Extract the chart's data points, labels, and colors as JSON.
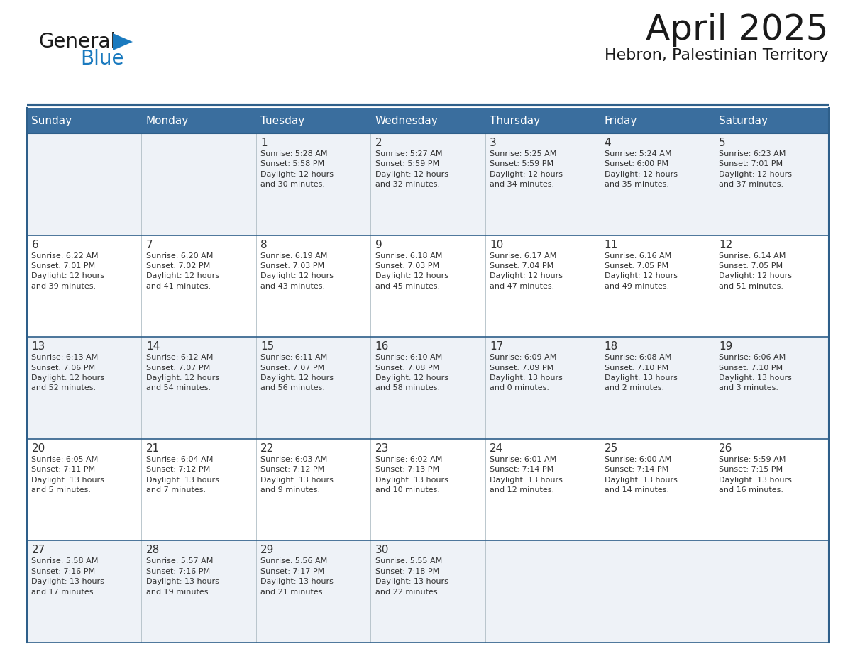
{
  "title": "April 2025",
  "subtitle": "Hebron, Palestinian Territory",
  "header_bg_color": "#3a6e9e",
  "header_text_color": "#ffffff",
  "cell_bg_color_odd": "#eef2f7",
  "cell_bg_color_even": "#ffffff",
  "grid_line_color": "#2e5f8a",
  "day_number_color": "#333333",
  "cell_text_color": "#333333",
  "days_of_week": [
    "Sunday",
    "Monday",
    "Tuesday",
    "Wednesday",
    "Thursday",
    "Friday",
    "Saturday"
  ],
  "weeks": [
    [
      {
        "day": "",
        "info": ""
      },
      {
        "day": "",
        "info": ""
      },
      {
        "day": "1",
        "info": "Sunrise: 5:28 AM\nSunset: 5:58 PM\nDaylight: 12 hours\nand 30 minutes."
      },
      {
        "day": "2",
        "info": "Sunrise: 5:27 AM\nSunset: 5:59 PM\nDaylight: 12 hours\nand 32 minutes."
      },
      {
        "day": "3",
        "info": "Sunrise: 5:25 AM\nSunset: 5:59 PM\nDaylight: 12 hours\nand 34 minutes."
      },
      {
        "day": "4",
        "info": "Sunrise: 5:24 AM\nSunset: 6:00 PM\nDaylight: 12 hours\nand 35 minutes."
      },
      {
        "day": "5",
        "info": "Sunrise: 6:23 AM\nSunset: 7:01 PM\nDaylight: 12 hours\nand 37 minutes."
      }
    ],
    [
      {
        "day": "6",
        "info": "Sunrise: 6:22 AM\nSunset: 7:01 PM\nDaylight: 12 hours\nand 39 minutes."
      },
      {
        "day": "7",
        "info": "Sunrise: 6:20 AM\nSunset: 7:02 PM\nDaylight: 12 hours\nand 41 minutes."
      },
      {
        "day": "8",
        "info": "Sunrise: 6:19 AM\nSunset: 7:03 PM\nDaylight: 12 hours\nand 43 minutes."
      },
      {
        "day": "9",
        "info": "Sunrise: 6:18 AM\nSunset: 7:03 PM\nDaylight: 12 hours\nand 45 minutes."
      },
      {
        "day": "10",
        "info": "Sunrise: 6:17 AM\nSunset: 7:04 PM\nDaylight: 12 hours\nand 47 minutes."
      },
      {
        "day": "11",
        "info": "Sunrise: 6:16 AM\nSunset: 7:05 PM\nDaylight: 12 hours\nand 49 minutes."
      },
      {
        "day": "12",
        "info": "Sunrise: 6:14 AM\nSunset: 7:05 PM\nDaylight: 12 hours\nand 51 minutes."
      }
    ],
    [
      {
        "day": "13",
        "info": "Sunrise: 6:13 AM\nSunset: 7:06 PM\nDaylight: 12 hours\nand 52 minutes."
      },
      {
        "day": "14",
        "info": "Sunrise: 6:12 AM\nSunset: 7:07 PM\nDaylight: 12 hours\nand 54 minutes."
      },
      {
        "day": "15",
        "info": "Sunrise: 6:11 AM\nSunset: 7:07 PM\nDaylight: 12 hours\nand 56 minutes."
      },
      {
        "day": "16",
        "info": "Sunrise: 6:10 AM\nSunset: 7:08 PM\nDaylight: 12 hours\nand 58 minutes."
      },
      {
        "day": "17",
        "info": "Sunrise: 6:09 AM\nSunset: 7:09 PM\nDaylight: 13 hours\nand 0 minutes."
      },
      {
        "day": "18",
        "info": "Sunrise: 6:08 AM\nSunset: 7:10 PM\nDaylight: 13 hours\nand 2 minutes."
      },
      {
        "day": "19",
        "info": "Sunrise: 6:06 AM\nSunset: 7:10 PM\nDaylight: 13 hours\nand 3 minutes."
      }
    ],
    [
      {
        "day": "20",
        "info": "Sunrise: 6:05 AM\nSunset: 7:11 PM\nDaylight: 13 hours\nand 5 minutes."
      },
      {
        "day": "21",
        "info": "Sunrise: 6:04 AM\nSunset: 7:12 PM\nDaylight: 13 hours\nand 7 minutes."
      },
      {
        "day": "22",
        "info": "Sunrise: 6:03 AM\nSunset: 7:12 PM\nDaylight: 13 hours\nand 9 minutes."
      },
      {
        "day": "23",
        "info": "Sunrise: 6:02 AM\nSunset: 7:13 PM\nDaylight: 13 hours\nand 10 minutes."
      },
      {
        "day": "24",
        "info": "Sunrise: 6:01 AM\nSunset: 7:14 PM\nDaylight: 13 hours\nand 12 minutes."
      },
      {
        "day": "25",
        "info": "Sunrise: 6:00 AM\nSunset: 7:14 PM\nDaylight: 13 hours\nand 14 minutes."
      },
      {
        "day": "26",
        "info": "Sunrise: 5:59 AM\nSunset: 7:15 PM\nDaylight: 13 hours\nand 16 minutes."
      }
    ],
    [
      {
        "day": "27",
        "info": "Sunrise: 5:58 AM\nSunset: 7:16 PM\nDaylight: 13 hours\nand 17 minutes."
      },
      {
        "day": "28",
        "info": "Sunrise: 5:57 AM\nSunset: 7:16 PM\nDaylight: 13 hours\nand 19 minutes."
      },
      {
        "day": "29",
        "info": "Sunrise: 5:56 AM\nSunset: 7:17 PM\nDaylight: 13 hours\nand 21 minutes."
      },
      {
        "day": "30",
        "info": "Sunrise: 5:55 AM\nSunset: 7:18 PM\nDaylight: 13 hours\nand 22 minutes."
      },
      {
        "day": "",
        "info": ""
      },
      {
        "day": "",
        "info": ""
      },
      {
        "day": "",
        "info": ""
      }
    ]
  ],
  "logo_color_general": "#1a1a1a",
  "logo_color_blue": "#1a7abf",
  "logo_triangle_color": "#1a7abf",
  "title_fontsize": 36,
  "subtitle_fontsize": 16,
  "header_fontsize": 11,
  "day_num_fontsize": 11,
  "cell_info_fontsize": 8
}
